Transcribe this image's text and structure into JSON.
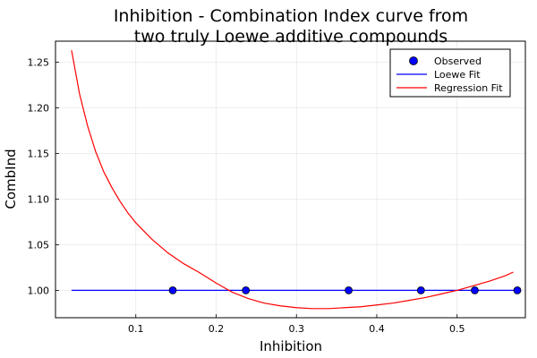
{
  "chart_data": {
    "type": "line",
    "title_lines": [
      "Inhibition - Combination Index curve from",
      "two truly Loewe additive compounds"
    ],
    "xlabel": "Inhibition",
    "ylabel": "CombInd",
    "xlim": [
      0.0,
      0.585
    ],
    "ylim": [
      0.97,
      1.273
    ],
    "x_ticks": [
      0.1,
      0.2,
      0.3,
      0.4,
      0.5
    ],
    "x_tick_labels": [
      "0.1",
      "0.2",
      "0.3",
      "0.4",
      "0.5"
    ],
    "y_ticks": [
      1.0,
      1.05,
      1.1,
      1.15,
      1.2,
      1.25
    ],
    "y_tick_labels": [
      "1.00",
      "1.05",
      "1.10",
      "1.15",
      "1.20",
      "1.25"
    ],
    "grid": true,
    "legend_position": "top-right",
    "series": [
      {
        "name": "Observed",
        "kind": "scatter",
        "color": "#0000ff",
        "x": [
          0.146,
          0.237,
          0.365,
          0.455,
          0.522,
          0.575
        ],
        "y": [
          1.0,
          1.0,
          1.0,
          1.0,
          1.0,
          1.0
        ]
      },
      {
        "name": "Loewe Fit",
        "kind": "line",
        "color": "#0000ff",
        "x": [
          0.02,
          0.575
        ],
        "y": [
          1.0,
          1.0
        ]
      },
      {
        "name": "Regression Fit",
        "kind": "line",
        "color": "#ff0000",
        "x": [
          0.02,
          0.03,
          0.04,
          0.05,
          0.06,
          0.07,
          0.08,
          0.09,
          0.1,
          0.12,
          0.14,
          0.16,
          0.18,
          0.2,
          0.22,
          0.24,
          0.26,
          0.28,
          0.3,
          0.32,
          0.34,
          0.36,
          0.38,
          0.4,
          0.42,
          0.44,
          0.46,
          0.48,
          0.5,
          0.52,
          0.54,
          0.56,
          0.57
        ],
        "y": [
          1.263,
          1.215,
          1.18,
          1.152,
          1.13,
          1.113,
          1.098,
          1.085,
          1.074,
          1.056,
          1.041,
          1.029,
          1.019,
          1.008,
          0.998,
          0.991,
          0.986,
          0.983,
          0.981,
          0.98,
          0.98,
          0.981,
          0.982,
          0.984,
          0.986,
          0.989,
          0.992,
          0.996,
          1.0,
          1.005,
          1.01,
          1.016,
          1.02
        ]
      }
    ]
  }
}
